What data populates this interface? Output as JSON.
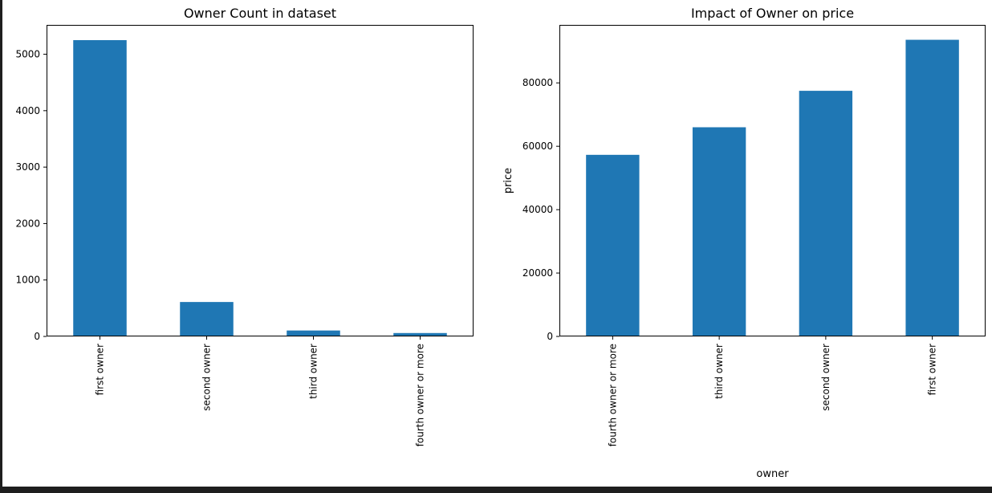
{
  "chart_data": [
    {
      "type": "bar",
      "title": "Owner Count in dataset",
      "xlabel": "",
      "ylabel": "",
      "categories": [
        "first owner",
        "second owner",
        "third owner",
        "fourth owner or more"
      ],
      "values": [
        5250,
        610,
        105,
        60
      ],
      "ylim": [
        0,
        5520
      ],
      "yticks": [
        0,
        1000,
        2000,
        3000,
        4000,
        5000
      ],
      "color": "#1f77b4",
      "grid": false,
      "legend": "none"
    },
    {
      "type": "bar",
      "title": "Impact of Owner on price",
      "xlabel": "owner",
      "ylabel": "price",
      "categories": [
        "fourth owner or more",
        "third owner",
        "second owner",
        "first owner"
      ],
      "values": [
        57300,
        66000,
        77500,
        93600
      ],
      "ylim": [
        0,
        98300
      ],
      "yticks": [
        0,
        20000,
        40000,
        60000,
        80000
      ],
      "color": "#1f77b4",
      "grid": false,
      "legend": "none"
    }
  ]
}
